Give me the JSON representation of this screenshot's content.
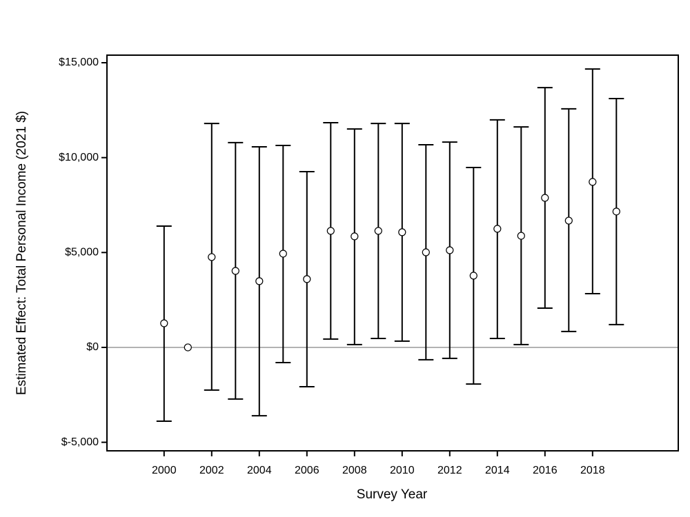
{
  "chart_data": {
    "type": "errorbar",
    "xlabel": "Survey Year",
    "ylabel": "Estimated Effect: Total Personal Income (2021 $)",
    "x": [
      2000,
      2001,
      2002,
      2003,
      2004,
      2005,
      2006,
      2007,
      2008,
      2009,
      2010,
      2011,
      2012,
      2013,
      2014,
      2015,
      2016,
      2017,
      2018,
      2019
    ],
    "values": [
      1270,
      0,
      4760,
      4030,
      3490,
      4940,
      3600,
      6140,
      5850,
      6140,
      6070,
      5010,
      5120,
      3780,
      6250,
      5880,
      7880,
      6680,
      8720,
      7160
    ],
    "lower": [
      -3890,
      null,
      -2250,
      -2720,
      -3600,
      -800,
      -2070,
      440,
      150,
      470,
      330,
      -650,
      -580,
      -1930,
      470,
      150,
      2070,
      840,
      2830,
      1200
    ],
    "upper": [
      6390,
      null,
      11800,
      10790,
      10570,
      10640,
      9260,
      11840,
      11510,
      11800,
      11800,
      10680,
      10820,
      9480,
      11990,
      11620,
      13690,
      12570,
      14670,
      13110
    ],
    "color": "#000000",
    "reference_line": 0,
    "reference_color": "#999999",
    "xlim": [
      1997.6,
      2021.6
    ],
    "xticks": [
      2000,
      2002,
      2004,
      2006,
      2008,
      2010,
      2012,
      2014,
      2016,
      2018
    ],
    "ylim": [
      -5450,
      15400
    ],
    "yticks": [
      {
        "value": -5000,
        "label": "$-5,000"
      },
      {
        "value": 0,
        "label": "$0"
      },
      {
        "value": 5000,
        "label": "$5,000"
      },
      {
        "value": 10000,
        "label": "$10,000"
      },
      {
        "value": 15000,
        "label": "$15,000"
      }
    ]
  }
}
